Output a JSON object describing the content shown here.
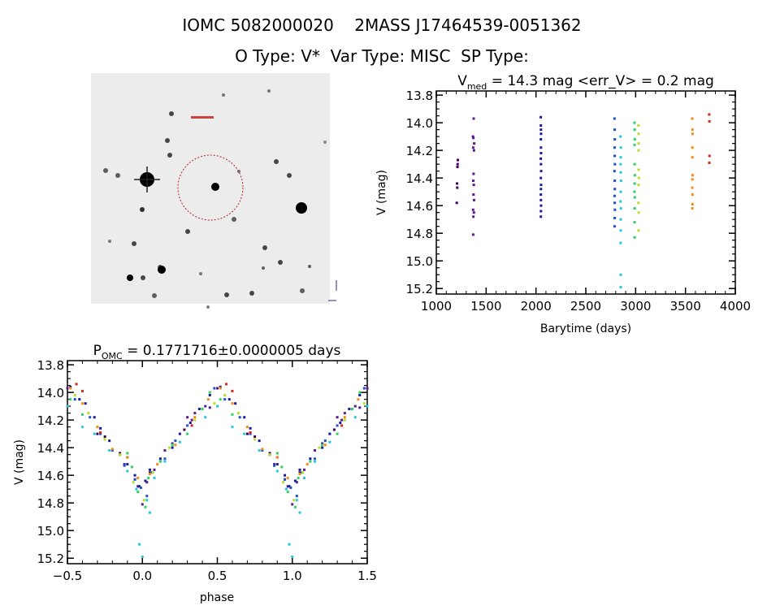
{
  "header": {
    "line1": "IOMC 5082000020    2MASS J17464539-0051362",
    "line2": "O Type: V*  Var Type: MISC  SP Type:"
  },
  "image_panel": {
    "kind": "sky-image",
    "marker": "red-dashed-circle"
  },
  "chart_data": [
    {
      "type": "scatter",
      "title_main": "V",
      "title_sub": "med",
      "title_rest": " = 14.3 mag <err_V> = 0.2 mag",
      "xlabel": "Barytime (days)",
      "ylabel": "V (mag)",
      "xlim": [
        1000,
        4000
      ],
      "ylim": [
        13.77,
        15.24
      ],
      "y_reversed": true,
      "xticks": [
        "1000",
        "1500",
        "2000",
        "2500",
        "3000",
        "3500",
        "4000"
      ],
      "yticks": [
        "13.8",
        "14.0",
        "14.2",
        "14.4",
        "14.6",
        "14.8",
        "15.0",
        "15.2"
      ],
      "grid": false
    },
    {
      "type": "scatter",
      "title_main": "P",
      "title_sub": "OMC",
      "title_rest": " = 0.1771716±0.0000005 days",
      "xlabel": "phase",
      "ylabel": "V (mag)",
      "xlim": [
        -0.5,
        1.5
      ],
      "ylim": [
        13.77,
        15.24
      ],
      "y_reversed": true,
      "xticks": [
        "-0.5",
        "0.0",
        "0.5",
        "1.0",
        "1.5"
      ],
      "yticks": [
        "13.8",
        "14.0",
        "14.2",
        "14.4",
        "14.6",
        "14.8",
        "15.0",
        "15.2"
      ],
      "grid": false
    }
  ],
  "observations": {
    "columns": [
      "barytime_days",
      "v_mag",
      "phase"
    ],
    "groups": [
      {
        "color": "#40005e",
        "points": [
          [
            1205,
            14.58,
            0.05
          ],
          [
            1208,
            14.44,
            0.85
          ],
          [
            1210,
            14.47,
            0.9
          ],
          [
            1212,
            14.32,
            0.75
          ],
          [
            1214,
            14.3,
            0.7
          ],
          [
            1216,
            14.27,
            0.28
          ]
        ]
      },
      {
        "color": "#5a1a8c",
        "points": [
          [
            1375,
            13.97,
            0.5
          ],
          [
            1368,
            14.1,
            0.42
          ],
          [
            1372,
            14.11,
            0.45
          ],
          [
            1380,
            14.15,
            0.35
          ],
          [
            1370,
            14.18,
            0.3
          ],
          [
            1378,
            14.2,
            0.33
          ],
          [
            1374,
            14.37,
            0.2
          ],
          [
            1371,
            14.42,
            0.15
          ],
          [
            1376,
            14.45,
            0.85
          ],
          [
            1373,
            14.52,
            0.88
          ],
          [
            1379,
            14.56,
            0.08
          ],
          [
            1369,
            14.63,
            0.95
          ],
          [
            1377,
            14.65,
            0.03
          ],
          [
            1372,
            14.68,
            0.97
          ],
          [
            1370,
            14.81,
            0.0
          ]
        ]
      },
      {
        "color": "#1a1a96",
        "points": [
          [
            2048,
            13.96,
            0.52
          ],
          [
            2049,
            14.02,
            0.45
          ],
          [
            2050,
            14.05,
            0.58
          ],
          [
            2051,
            14.08,
            0.62
          ],
          [
            2049,
            14.12,
            0.38
          ],
          [
            2050,
            14.18,
            0.68
          ],
          [
            2051,
            14.22,
            0.32
          ],
          [
            2048,
            14.26,
            0.72
          ],
          [
            2050,
            14.3,
            0.25
          ],
          [
            2052,
            14.35,
            0.78
          ],
          [
            2049,
            14.4,
            0.2
          ],
          [
            2051,
            14.45,
            0.85
          ],
          [
            2050,
            14.48,
            0.12
          ],
          [
            2049,
            14.52,
            0.9
          ],
          [
            2050,
            14.56,
            0.05
          ],
          [
            2051,
            14.6,
            0.95
          ],
          [
            2050,
            14.64,
            0.02
          ],
          [
            2049,
            14.68,
            0.98
          ]
        ]
      },
      {
        "color": "#1e50c8",
        "points": [
          [
            2788,
            13.97,
            0.48
          ],
          [
            2790,
            14.05,
            0.55
          ],
          [
            2791,
            14.12,
            0.4
          ],
          [
            2789,
            14.18,
            0.65
          ],
          [
            2790,
            14.24,
            0.3
          ],
          [
            2792,
            14.3,
            0.72
          ],
          [
            2788,
            14.35,
            0.22
          ],
          [
            2790,
            14.42,
            0.8
          ],
          [
            2791,
            14.48,
            0.15
          ],
          [
            2789,
            14.53,
            0.88
          ],
          [
            2790,
            14.58,
            0.06
          ],
          [
            2792,
            14.63,
            0.95
          ],
          [
            2790,
            14.69,
            0.99
          ],
          [
            2789,
            14.75,
            0.03
          ]
        ]
      },
      {
        "color": "#28c8d8",
        "points": [
          [
            2848,
            14.1,
            0.5
          ],
          [
            2852,
            14.18,
            0.42
          ],
          [
            2850,
            14.25,
            0.6
          ],
          [
            2849,
            14.3,
            0.68
          ],
          [
            2851,
            14.36,
            0.25
          ],
          [
            2853,
            14.42,
            0.78
          ],
          [
            2850,
            14.5,
            0.15
          ],
          [
            2848,
            14.57,
            0.9
          ],
          [
            2852,
            14.62,
            0.08
          ],
          [
            2850,
            14.7,
            0.96
          ],
          [
            2851,
            14.78,
            0.03
          ],
          [
            2849,
            14.87,
            0.05
          ],
          [
            2850,
            15.1,
            0.98
          ],
          [
            2851,
            15.19,
            0.0
          ]
        ]
      },
      {
        "color": "#30d060",
        "points": [
          [
            2988,
            14.0,
            0.45
          ],
          [
            2990,
            14.05,
            0.52
          ],
          [
            2991,
            14.12,
            0.4
          ],
          [
            2989,
            14.16,
            0.6
          ],
          [
            2990,
            14.3,
            0.3
          ],
          [
            2992,
            14.38,
            0.2
          ],
          [
            2990,
            14.44,
            0.9
          ],
          [
            2988,
            14.5,
            0.12
          ],
          [
            2991,
            14.54,
            0.93
          ],
          [
            2990,
            14.62,
            0.04
          ],
          [
            2989,
            14.72,
            0.97
          ],
          [
            2990,
            14.83,
            0.02
          ]
        ]
      },
      {
        "color": "#b4e028",
        "points": [
          [
            3028,
            14.02,
            0.55
          ],
          [
            3030,
            14.08,
            0.48
          ],
          [
            3031,
            14.15,
            0.64
          ],
          [
            3029,
            14.2,
            0.35
          ],
          [
            3030,
            14.34,
            0.75
          ],
          [
            3032,
            14.4,
            0.18
          ],
          [
            3030,
            14.45,
            0.85
          ],
          [
            3028,
            14.58,
            0.07
          ],
          [
            3031,
            14.65,
            0.94
          ],
          [
            3030,
            14.78,
            0.01
          ]
        ]
      },
      {
        "color": "#f08c18",
        "points": [
          [
            3568,
            13.97,
            0.52
          ],
          [
            3570,
            14.05,
            0.44
          ],
          [
            3571,
            14.08,
            0.6
          ],
          [
            3569,
            14.18,
            0.35
          ],
          [
            3570,
            14.25,
            0.7
          ],
          [
            3572,
            14.38,
            0.22
          ],
          [
            3570,
            14.41,
            0.8
          ],
          [
            3568,
            14.47,
            0.9
          ],
          [
            3571,
            14.52,
            0.1
          ],
          [
            3570,
            14.59,
            0.05
          ],
          [
            3569,
            14.62,
            0.97
          ]
        ]
      },
      {
        "color": "#d02818",
        "points": [
          [
            3738,
            13.94,
            0.56
          ],
          [
            3740,
            13.99,
            0.6
          ],
          [
            3741,
            14.24,
            0.33
          ],
          [
            3739,
            14.29,
            0.72
          ]
        ]
      }
    ]
  }
}
